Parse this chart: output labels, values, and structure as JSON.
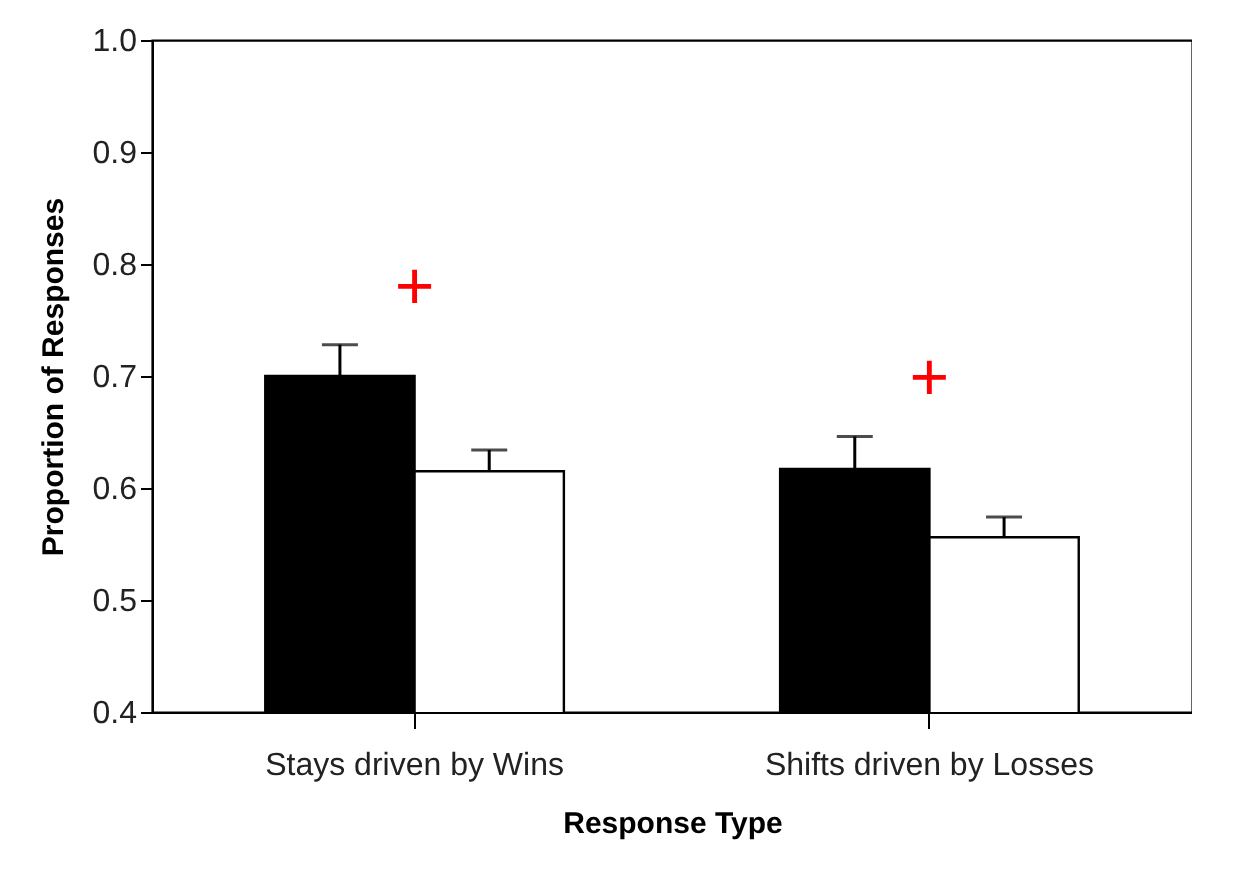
{
  "chart_data": {
    "type": "bar",
    "xlabel": "Response Type",
    "ylabel": "Proportion of Responses",
    "categories": [
      "Stays driven by Wins",
      "Shifts driven by Losses"
    ],
    "series": [
      {
        "color": "#000000",
        "values": [
          0.7,
          0.617
        ],
        "errors": [
          0.028,
          0.029
        ]
      },
      {
        "color": "#ffffff",
        "values": [
          0.615,
          0.556
        ],
        "errors": [
          0.019,
          0.018
        ]
      }
    ],
    "ylim": [
      0.4,
      1.0
    ],
    "yticks": [
      {
        "value": 0.4,
        "label": "0.4"
      },
      {
        "value": 0.5,
        "label": "0.5"
      },
      {
        "value": 0.6,
        "label": "0.6"
      },
      {
        "value": 0.7,
        "label": "0.7"
      },
      {
        "value": 0.8,
        "label": "0.8"
      },
      {
        "value": 0.9,
        "label": "0.9"
      },
      {
        "value": 1.0,
        "label": "1.0"
      }
    ],
    "annotations": [
      "+",
      "+"
    ],
    "grid": false,
    "legend": false
  }
}
